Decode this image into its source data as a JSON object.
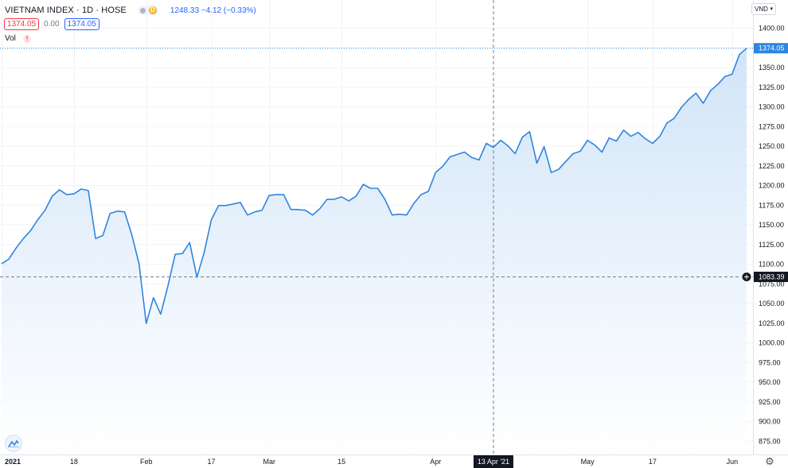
{
  "header": {
    "symbol": "VIETNAM INDEX · 1D · HOSE",
    "badge": "D",
    "quote": "1248.33  −4.12 (−0.33%)"
  },
  "legend_row": {
    "left_value": "1374.05",
    "middle_value": "0.00",
    "right_value": "1374.05"
  },
  "volume_label": "Vol",
  "volume_warning": "!",
  "currency": "VND",
  "crosshair": {
    "price_label": "1083.39",
    "date_label": "13 Apr '21"
  },
  "last_price_label": "1374.05",
  "colors": {
    "line": "#2f85de",
    "area_top": "#cfe3f8",
    "area_bottom": "#ffffff",
    "grid": "#f0f3fa",
    "last_price": "#2f85de",
    "crosshair_label": "#131722"
  },
  "chart_data": {
    "type": "area",
    "title": "VIETNAM INDEX · 1D · HOSE",
    "xlabel": "",
    "ylabel": "",
    "grid": true,
    "ylim": [
      853,
      1416
    ],
    "y_ticks": [
      "1400.00",
      "1375.00",
      "1350.00",
      "1325.00",
      "1300.00",
      "1275.00",
      "1250.00",
      "1225.00",
      "1200.00",
      "1175.00",
      "1150.00",
      "1125.00",
      "1100.00",
      "1075.00",
      "1050.00",
      "1025.00",
      "1000.00",
      "975.00",
      "950.00",
      "925.00",
      "900.00",
      "875.00"
    ],
    "x_tick_labels": [
      {
        "label": "2021",
        "x": "2021-01-04",
        "bold": true
      },
      {
        "label": "18",
        "x": "2021-01-18",
        "bold": false
      },
      {
        "label": "Feb",
        "x": "2021-02-01",
        "bold": false
      },
      {
        "label": "17",
        "x": "2021-02-17",
        "bold": false
      },
      {
        "label": "Mar",
        "x": "2021-03-01",
        "bold": false
      },
      {
        "label": "15",
        "x": "2021-03-15",
        "bold": false
      },
      {
        "label": "Apr",
        "x": "2021-04-01",
        "bold": false
      },
      {
        "label": "May",
        "x": "2021-05-04",
        "bold": false
      },
      {
        "label": "17",
        "x": "2021-05-17",
        "bold": false
      },
      {
        "label": "Jun",
        "x": "2021-06-01",
        "bold": false
      }
    ],
    "series": [
      {
        "values": [
          {
            "x": "2021-01-04",
            "y": 1100
          },
          {
            "x": "2021-01-05",
            "y": 1106
          },
          {
            "x": "2021-01-06",
            "y": 1120
          },
          {
            "x": "2021-01-07",
            "y": 1132
          },
          {
            "x": "2021-01-08",
            "y": 1142
          },
          {
            "x": "2021-01-11",
            "y": 1156
          },
          {
            "x": "2021-01-12",
            "y": 1168
          },
          {
            "x": "2021-01-13",
            "y": 1186
          },
          {
            "x": "2021-01-14",
            "y": 1194
          },
          {
            "x": "2021-01-15",
            "y": 1188
          },
          {
            "x": "2021-01-18",
            "y": 1189
          },
          {
            "x": "2021-01-19",
            "y": 1195
          },
          {
            "x": "2021-01-20",
            "y": 1193
          },
          {
            "x": "2021-01-21",
            "y": 1132
          },
          {
            "x": "2021-01-22",
            "y": 1136
          },
          {
            "x": "2021-01-25",
            "y": 1164
          },
          {
            "x": "2021-01-26",
            "y": 1167
          },
          {
            "x": "2021-01-27",
            "y": 1166
          },
          {
            "x": "2021-01-28",
            "y": 1137
          },
          {
            "x": "2021-01-29",
            "y": 1100
          },
          {
            "x": "2021-02-01",
            "y": 1024
          },
          {
            "x": "2021-02-02",
            "y": 1057
          },
          {
            "x": "2021-02-03",
            "y": 1036
          },
          {
            "x": "2021-02-04",
            "y": 1072
          },
          {
            "x": "2021-02-05",
            "y": 1112
          },
          {
            "x": "2021-02-08",
            "y": 1113
          },
          {
            "x": "2021-02-09",
            "y": 1127
          },
          {
            "x": "2021-02-10",
            "y": 1083
          },
          {
            "x": "2021-02-11",
            "y": 1114
          },
          {
            "x": "2021-02-17",
            "y": 1156
          },
          {
            "x": "2021-02-18",
            "y": 1174
          },
          {
            "x": "2021-02-19",
            "y": 1174
          },
          {
            "x": "2021-02-22",
            "y": 1176
          },
          {
            "x": "2021-02-23",
            "y": 1178
          },
          {
            "x": "2021-02-24",
            "y": 1162
          },
          {
            "x": "2021-02-25",
            "y": 1166
          },
          {
            "x": "2021-02-26",
            "y": 1168
          },
          {
            "x": "2021-03-01",
            "y": 1187
          },
          {
            "x": "2021-03-02",
            "y": 1188
          },
          {
            "x": "2021-03-03",
            "y": 1188
          },
          {
            "x": "2021-03-04",
            "y": 1169
          },
          {
            "x": "2021-03-05",
            "y": 1169
          },
          {
            "x": "2021-03-08",
            "y": 1168
          },
          {
            "x": "2021-03-09",
            "y": 1162
          },
          {
            "x": "2021-03-10",
            "y": 1170
          },
          {
            "x": "2021-03-11",
            "y": 1182
          },
          {
            "x": "2021-03-12",
            "y": 1182
          },
          {
            "x": "2021-03-15",
            "y": 1185
          },
          {
            "x": "2021-03-16",
            "y": 1180
          },
          {
            "x": "2021-03-17",
            "y": 1186
          },
          {
            "x": "2021-03-18",
            "y": 1201
          },
          {
            "x": "2021-03-19",
            "y": 1196
          },
          {
            "x": "2021-03-22",
            "y": 1196
          },
          {
            "x": "2021-03-23",
            "y": 1182
          },
          {
            "x": "2021-03-24",
            "y": 1162
          },
          {
            "x": "2021-03-25",
            "y": 1163
          },
          {
            "x": "2021-03-26",
            "y": 1162
          },
          {
            "x": "2021-03-29",
            "y": 1177
          },
          {
            "x": "2021-03-30",
            "y": 1188
          },
          {
            "x": "2021-03-31",
            "y": 1192
          },
          {
            "x": "2021-04-01",
            "y": 1216
          },
          {
            "x": "2021-04-02",
            "y": 1224
          },
          {
            "x": "2021-04-05",
            "y": 1236
          },
          {
            "x": "2021-04-06",
            "y": 1239
          },
          {
            "x": "2021-04-07",
            "y": 1242
          },
          {
            "x": "2021-04-08",
            "y": 1235
          },
          {
            "x": "2021-04-09",
            "y": 1232
          },
          {
            "x": "2021-04-12",
            "y": 1253
          },
          {
            "x": "2021-04-13",
            "y": 1248
          },
          {
            "x": "2021-04-14",
            "y": 1257
          },
          {
            "x": "2021-04-15",
            "y": 1250
          },
          {
            "x": "2021-04-16",
            "y": 1240
          },
          {
            "x": "2021-04-19",
            "y": 1261
          },
          {
            "x": "2021-04-20",
            "y": 1268
          },
          {
            "x": "2021-04-21",
            "y": 1228
          },
          {
            "x": "2021-04-22",
            "y": 1249
          },
          {
            "x": "2021-04-23",
            "y": 1216
          },
          {
            "x": "2021-04-26",
            "y": 1220
          },
          {
            "x": "2021-04-27",
            "y": 1230
          },
          {
            "x": "2021-04-28",
            "y": 1240
          },
          {
            "x": "2021-04-29",
            "y": 1243
          },
          {
            "x": "2021-05-04",
            "y": 1257
          },
          {
            "x": "2021-05-05",
            "y": 1251
          },
          {
            "x": "2021-05-06",
            "y": 1242
          },
          {
            "x": "2021-05-07",
            "y": 1260
          },
          {
            "x": "2021-05-10",
            "y": 1256
          },
          {
            "x": "2021-05-11",
            "y": 1270
          },
          {
            "x": "2021-05-12",
            "y": 1262
          },
          {
            "x": "2021-05-13",
            "y": 1267
          },
          {
            "x": "2021-05-14",
            "y": 1259
          },
          {
            "x": "2021-05-17",
            "y": 1253
          },
          {
            "x": "2021-05-18",
            "y": 1262
          },
          {
            "x": "2021-05-19",
            "y": 1279
          },
          {
            "x": "2021-05-20",
            "y": 1285
          },
          {
            "x": "2021-05-21",
            "y": 1299
          },
          {
            "x": "2021-05-24",
            "y": 1309
          },
          {
            "x": "2021-05-25",
            "y": 1317
          },
          {
            "x": "2021-05-26",
            "y": 1304
          },
          {
            "x": "2021-05-27",
            "y": 1320
          },
          {
            "x": "2021-05-28",
            "y": 1328
          },
          {
            "x": "2021-05-31",
            "y": 1338
          },
          {
            "x": "2021-06-01",
            "y": 1341
          },
          {
            "x": "2021-06-02",
            "y": 1366
          },
          {
            "x": "2021-06-03",
            "y": 1374.05
          }
        ]
      }
    ]
  }
}
